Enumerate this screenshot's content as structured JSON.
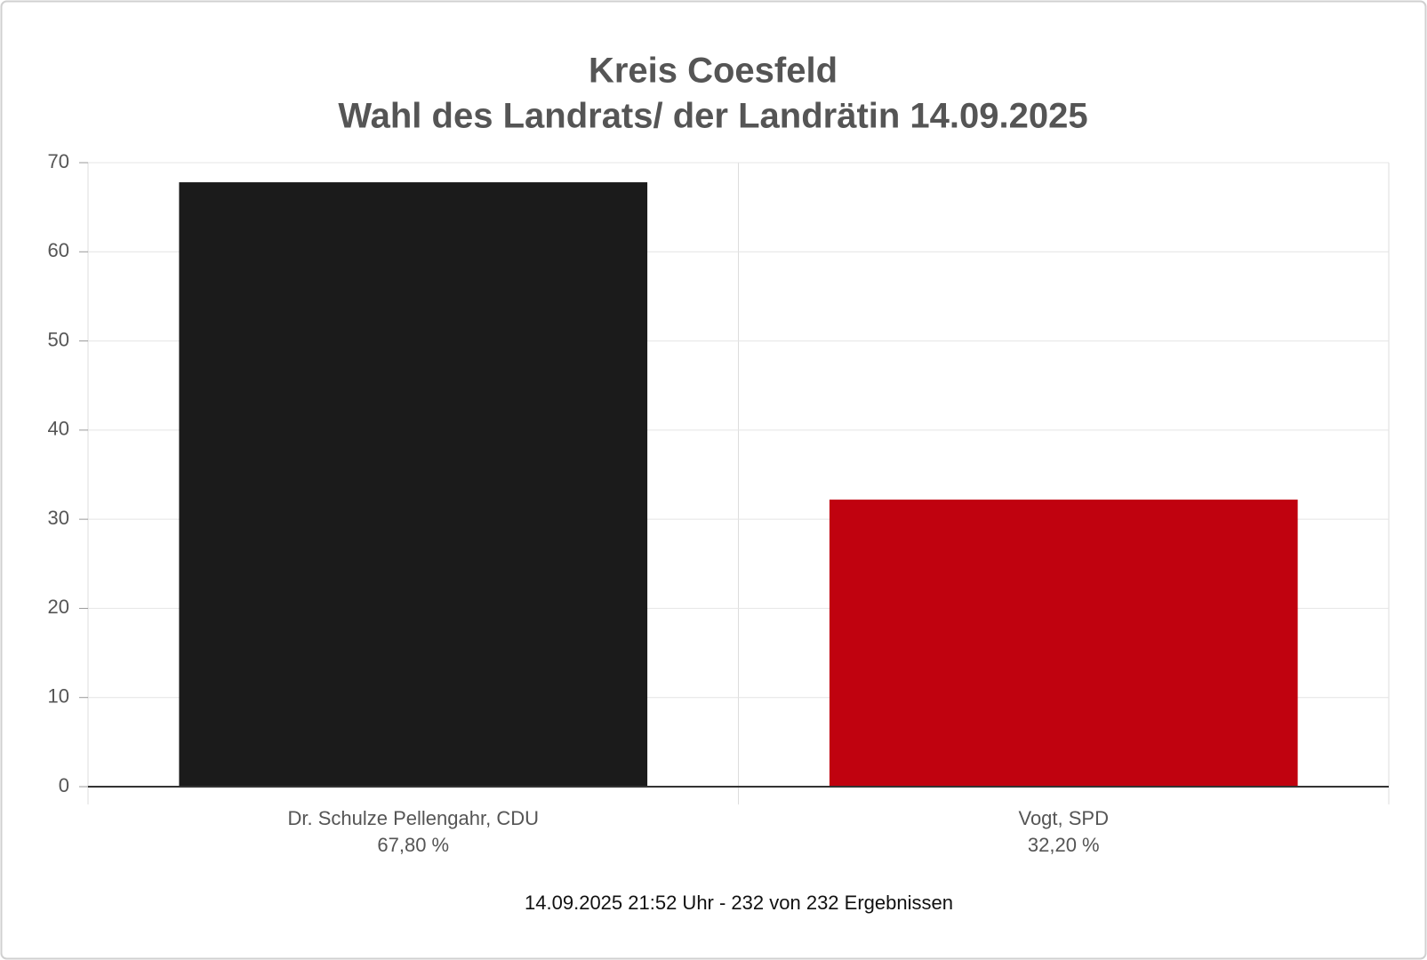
{
  "chart_data": {
    "type": "bar",
    "title": "Kreis Coesfeld",
    "subtitle": "Wahl des Landrats/ der Landrätin 14.09.2025",
    "categories": [
      "Dr. Schulze Pellengahr, CDU",
      "Vogt, SPD"
    ],
    "values": [
      67.8,
      32.2
    ],
    "value_labels": [
      "67,80 %",
      "32,20 %"
    ],
    "colors": [
      "#1b1b1b",
      "#c0020f"
    ],
    "ylim": [
      0,
      70
    ],
    "yticks": [
      0,
      10,
      20,
      30,
      40,
      50,
      60,
      70
    ],
    "grid": true,
    "footnote": "14.09.2025 21:52 Uhr - 232 von 232 Ergebnissen"
  }
}
